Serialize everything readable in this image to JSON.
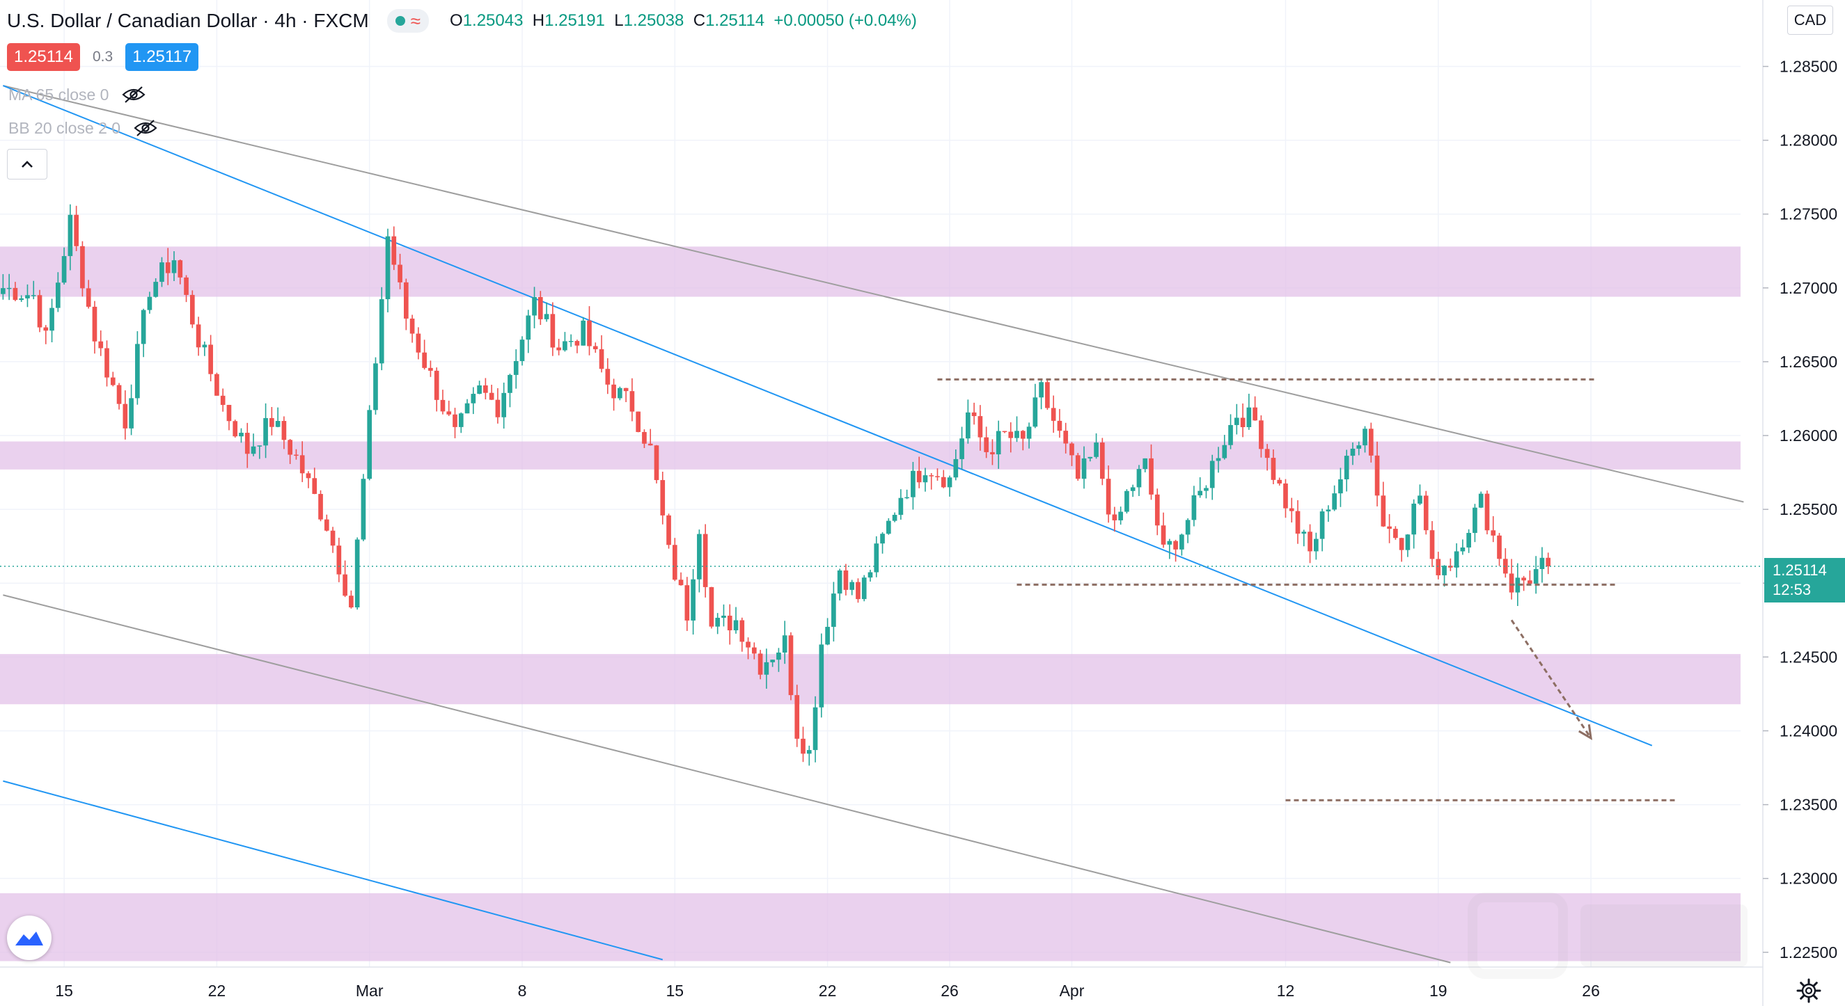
{
  "header": {
    "title": "U.S. Dollar / Canadian Dollar · 4h · FXCM",
    "ohlc": {
      "o_label": "O",
      "o": "1.25043",
      "h_label": "H",
      "h": "1.25191",
      "l_label": "L",
      "l": "1.25038",
      "c_label": "C",
      "c": "1.25114",
      "change": "+0.00050 (+0.04%)"
    },
    "sell_price": "1.25114",
    "spread": "0.3",
    "buy_price": "1.25117",
    "indicators": [
      {
        "label": "MA 65 close 0"
      },
      {
        "label": "BB 20 close 2 0"
      }
    ],
    "currency": "CAD",
    "status_color": "#26a69a"
  },
  "price_tag": {
    "value": "1.25114",
    "countdown": "12:53",
    "color": "#26a69a"
  },
  "chart_data": {
    "type": "candlestick",
    "title": "",
    "y_ticks": [
      "1.28500",
      "1.28000",
      "1.27500",
      "1.27000",
      "1.26500",
      "1.26000",
      "1.25500",
      "1.25000",
      "1.24500",
      "1.24000",
      "1.23500",
      "1.23000",
      "1.22500"
    ],
    "y_range": [
      1.224,
      1.2895
    ],
    "x_ticks": [
      "15",
      "22",
      "Mar",
      "8",
      "15",
      "22",
      "26",
      "Apr",
      "12",
      "19",
      "26"
    ],
    "x_tick_index": [
      10,
      35,
      60,
      85,
      110,
      135,
      155,
      175,
      210,
      235,
      260
    ],
    "bar_count": 285,
    "last_close": 1.25114,
    "colors": {
      "up": "#26a69a",
      "down": "#ef5350",
      "zone": "#e1bee7",
      "level": "#8d6e63",
      "channel_gray": "#9e9e9e",
      "channel_blue": "#2196f3"
    },
    "zones": [
      {
        "from": 1.2694,
        "to": 1.2728
      },
      {
        "from": 1.2577,
        "to": 1.2596
      },
      {
        "from": 1.2418,
        "to": 1.2452
      },
      {
        "from": 1.2244,
        "to": 1.229
      }
    ],
    "levels": [
      {
        "price": 1.2638,
        "from_bar": 153,
        "to_bar": 261
      },
      {
        "price": 1.2499,
        "from_bar": 166,
        "to_bar": 264
      },
      {
        "price": 1.2353,
        "from_bar": 210,
        "to_bar": 274
      }
    ],
    "trend_lines": [
      {
        "color": "gray",
        "from": [
          0,
          1.2837
        ],
        "to": [
          285,
          1.2555
        ]
      },
      {
        "color": "gray",
        "from": [
          0,
          1.2492
        ],
        "to": [
          237,
          1.2243
        ]
      },
      {
        "color": "blue",
        "from": [
          0,
          1.2837
        ],
        "to": [
          270,
          1.239
        ]
      },
      {
        "color": "blue",
        "from": [
          0,
          1.2366
        ],
        "to": [
          108,
          1.2245
        ]
      }
    ],
    "arrow": {
      "from": [
        247,
        1.2475
      ],
      "to": [
        260,
        1.2395
      ]
    },
    "anchors": [
      [
        0,
        1.27
      ],
      [
        5,
        1.2695
      ],
      [
        7,
        1.2665
      ],
      [
        11,
        1.2745
      ],
      [
        15,
        1.2668
      ],
      [
        20,
        1.261
      ],
      [
        24,
        1.27
      ],
      [
        28,
        1.272
      ],
      [
        32,
        1.2665
      ],
      [
        36,
        1.262
      ],
      [
        40,
        1.259
      ],
      [
        44,
        1.261
      ],
      [
        48,
        1.2585
      ],
      [
        53,
        1.254
      ],
      [
        57,
        1.2485
      ],
      [
        60,
        1.261
      ],
      [
        63,
        1.2735
      ],
      [
        66,
        1.268
      ],
      [
        70,
        1.264
      ],
      [
        74,
        1.26
      ],
      [
        78,
        1.263
      ],
      [
        81,
        1.262
      ],
      [
        84,
        1.2655
      ],
      [
        87,
        1.269
      ],
      [
        91,
        1.266
      ],
      [
        95,
        1.267
      ],
      [
        99,
        1.2635
      ],
      [
        103,
        1.262
      ],
      [
        106,
        1.259
      ],
      [
        109,
        1.252
      ],
      [
        112,
        1.248
      ],
      [
        114,
        1.254
      ],
      [
        116,
        1.247
      ],
      [
        120,
        1.2475
      ],
      [
        124,
        1.2445
      ],
      [
        128,
        1.246
      ],
      [
        130,
        1.24
      ],
      [
        132,
        1.2385
      ],
      [
        134,
        1.246
      ],
      [
        137,
        1.251
      ],
      [
        140,
        1.249
      ],
      [
        143,
        1.252
      ],
      [
        147,
        1.256
      ],
      [
        151,
        1.258
      ],
      [
        155,
        1.257
      ],
      [
        158,
        1.2615
      ],
      [
        161,
        1.259
      ],
      [
        164,
        1.26
      ],
      [
        167,
        1.2595
      ],
      [
        170,
        1.263
      ],
      [
        173,
        1.26
      ],
      [
        176,
        1.257
      ],
      [
        179,
        1.259
      ],
      [
        182,
        1.2535
      ],
      [
        184,
        1.256
      ],
      [
        187,
        1.258
      ],
      [
        190,
        1.252
      ],
      [
        193,
        1.2535
      ],
      [
        196,
        1.256
      ],
      [
        199,
        1.259
      ],
      [
        202,
        1.2615
      ],
      [
        205,
        1.261
      ],
      [
        208,
        1.2575
      ],
      [
        211,
        1.2545
      ],
      [
        214,
        1.252
      ],
      [
        217,
        1.2555
      ],
      [
        220,
        1.258
      ],
      [
        223,
        1.261
      ],
      [
        226,
        1.254
      ],
      [
        229,
        1.253
      ],
      [
        232,
        1.256
      ],
      [
        234,
        1.251
      ],
      [
        237,
        1.2515
      ],
      [
        240,
        1.254
      ],
      [
        242,
        1.2555
      ],
      [
        245,
        1.252
      ],
      [
        247,
        1.2498
      ],
      [
        250,
        1.2504
      ],
      [
        252,
        1.2511
      ],
      [
        253,
        1.25114
      ]
    ]
  }
}
